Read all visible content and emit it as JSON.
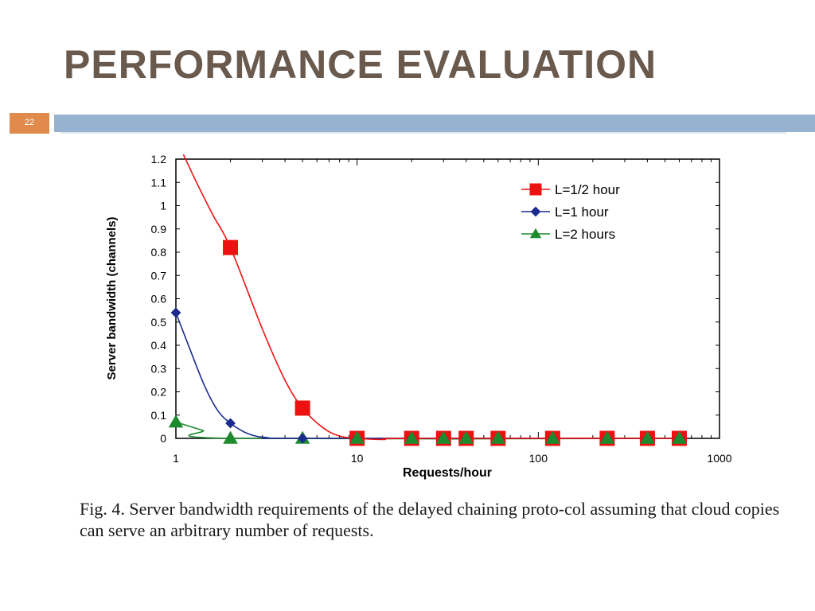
{
  "slide": {
    "title": "PERFORMANCE EVALUATION",
    "number": "22",
    "colors": {
      "title": "#6a5a4e",
      "number_box": "#e08a4c",
      "bar": "#95b3d0"
    }
  },
  "figure": {
    "caption": "Fig. 4.  Server bandwidth requirements of the delayed chaining proto-col assuming that cloud copies can serve an arbitrary number of requests."
  },
  "chart_data": {
    "type": "line",
    "title": "",
    "xlabel": "Requests/hour",
    "ylabel": "Server bandwidth (channels)",
    "xscale": "log",
    "xlim": [
      1,
      1000
    ],
    "ylim": [
      0,
      1.2
    ],
    "x_ticks": [
      1,
      10,
      100,
      1000
    ],
    "x_tick_labels": [
      "1",
      "10",
      "100",
      "1000"
    ],
    "y_ticks": [
      0,
      0.1,
      0.2,
      0.3,
      0.4,
      0.5,
      0.6,
      0.7,
      0.8,
      0.9,
      1,
      1.1,
      1.2
    ],
    "y_tick_labels": [
      "0",
      "0.1",
      "0.2",
      "0.3",
      "0.4",
      "0.5",
      "0.6",
      "0.7",
      "0.8",
      "0.9",
      "1",
      "1.1",
      "1.2"
    ],
    "grid": false,
    "legend_position": "top-right",
    "series": [
      {
        "name": "L=1/2 hour",
        "color": "#ee1111",
        "marker": "square",
        "points": [
          [
            2,
            0.82
          ],
          [
            5,
            0.13
          ],
          [
            10,
            0
          ],
          [
            20,
            0
          ],
          [
            30,
            0
          ],
          [
            40,
            0
          ],
          [
            60,
            0
          ],
          [
            120,
            0
          ],
          [
            240,
            0
          ],
          [
            400,
            0
          ],
          [
            600,
            0
          ]
        ],
        "curve": [
          [
            1.1,
            1.22
          ],
          [
            1.3,
            1.1
          ],
          [
            1.6,
            0.96
          ],
          [
            2,
            0.82
          ],
          [
            3,
            0.47
          ],
          [
            4,
            0.25
          ],
          [
            5,
            0.13
          ],
          [
            6.5,
            0.045
          ],
          [
            8,
            0.01
          ],
          [
            10,
            0
          ],
          [
            14,
            -0.005
          ],
          [
            20,
            0
          ],
          [
            600,
            0
          ]
        ]
      },
      {
        "name": "L=1 hour",
        "color": "#1b2a8f",
        "marker": "diamond",
        "points": [
          [
            1,
            0.54
          ],
          [
            2,
            0.065
          ],
          [
            5,
            0
          ],
          [
            10,
            0
          ],
          [
            20,
            0
          ],
          [
            30,
            0
          ],
          [
            40,
            0
          ],
          [
            60,
            0
          ],
          [
            120,
            0
          ],
          [
            240,
            0
          ],
          [
            400,
            0
          ],
          [
            600,
            0
          ]
        ],
        "curve": [
          [
            1,
            0.54
          ],
          [
            1.2,
            0.38
          ],
          [
            1.45,
            0.22
          ],
          [
            1.7,
            0.12
          ],
          [
            2,
            0.065
          ],
          [
            2.5,
            0.02
          ],
          [
            3.2,
            0.003
          ],
          [
            5,
            0
          ],
          [
            600,
            0
          ]
        ]
      },
      {
        "name": "L=2 hours",
        "color": "#1e8a2e",
        "marker": "triangle",
        "points": [
          [
            1,
            0.07
          ],
          [
            2,
            0
          ],
          [
            5,
            0
          ],
          [
            10,
            0
          ],
          [
            20,
            0
          ],
          [
            30,
            0
          ],
          [
            40,
            0
          ],
          [
            60,
            0
          ],
          [
            120,
            0
          ],
          [
            240,
            0
          ],
          [
            400,
            0
          ],
          [
            600,
            0
          ]
        ],
        "curve": [
          [
            1,
            0.07
          ],
          [
            1.4,
            0.035
          ],
          [
            2,
            0
          ],
          [
            600,
            0
          ]
        ]
      }
    ]
  }
}
